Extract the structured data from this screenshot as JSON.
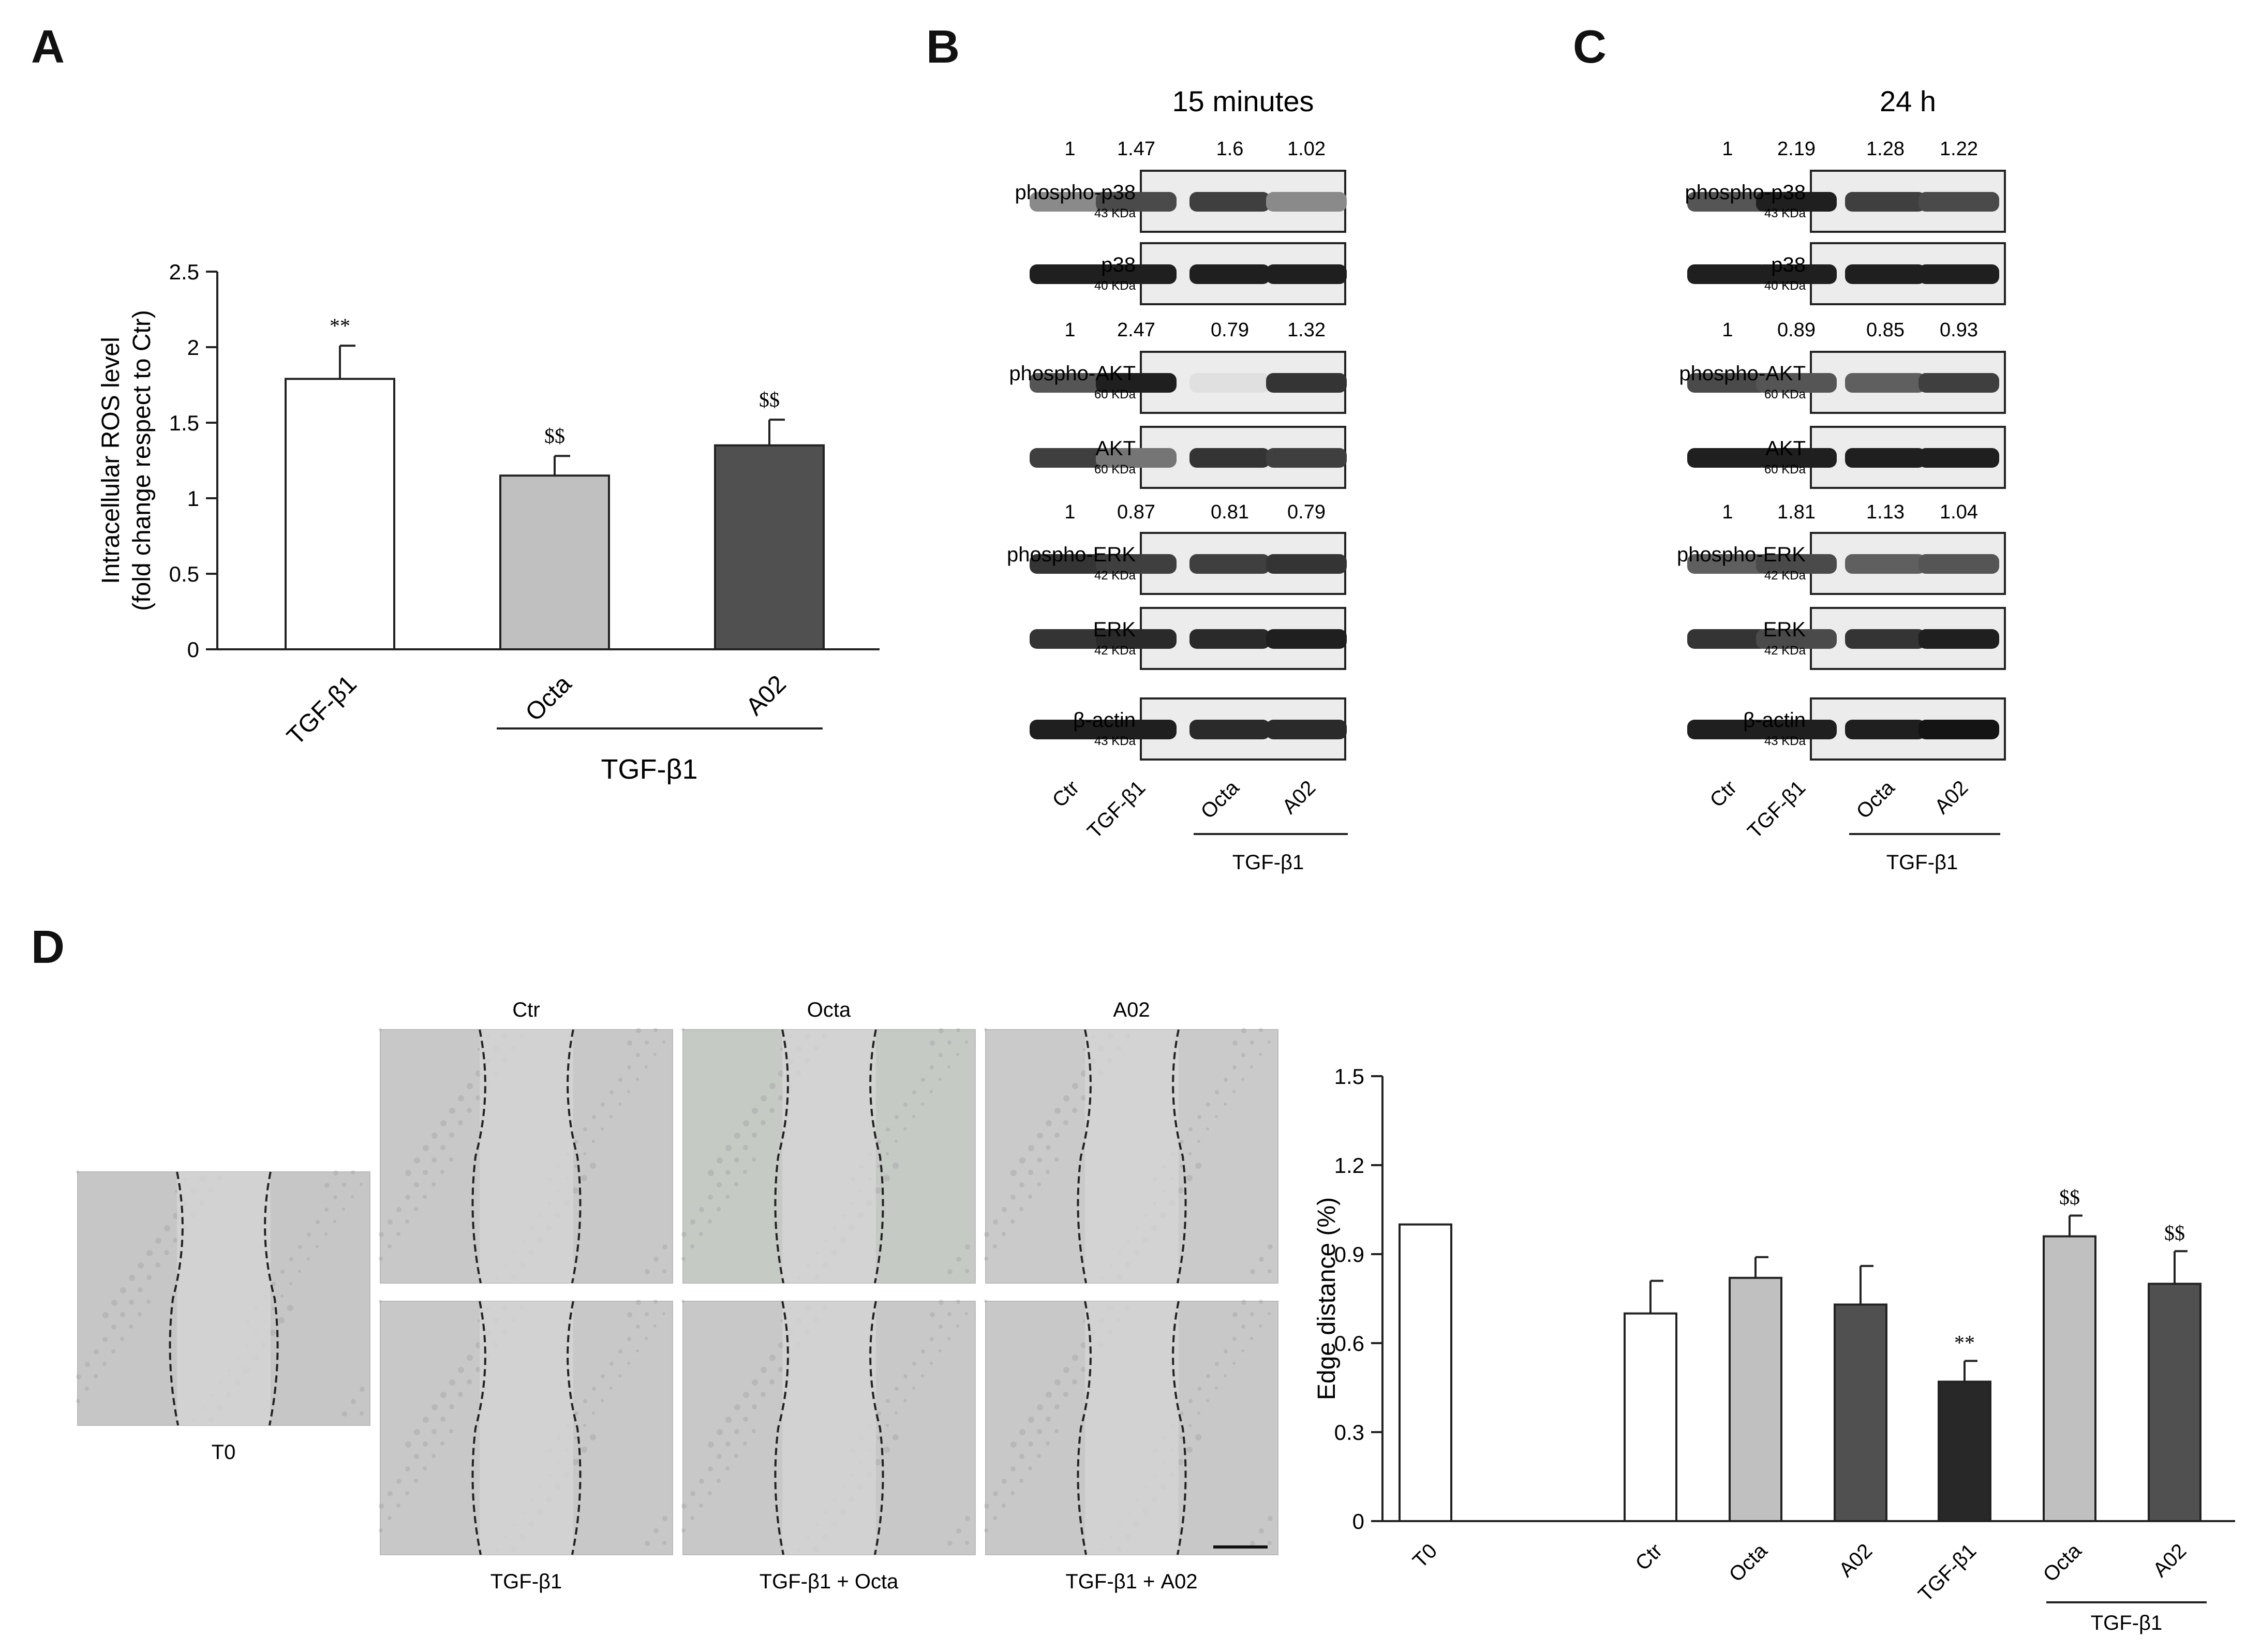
{
  "panels": {
    "a": "A",
    "b": "B",
    "c": "C",
    "d": "D"
  },
  "panel_a": {
    "chart_data": {
      "type": "bar",
      "categories": [
        "TGF-β1",
        "Octa",
        "A02"
      ],
      "values": [
        1.79,
        1.15,
        1.35
      ],
      "errors": [
        0.22,
        0.13,
        0.17
      ],
      "colors": [
        "#ffffff",
        "#c0c0c0",
        "#505050"
      ],
      "annotations": [
        "**",
        "$$",
        "$$"
      ],
      "ylabel_line1": "Intracellular ROS level",
      "ylabel_line2": "(fold change respect to Ctr)",
      "ylim": [
        0,
        2.5
      ],
      "yticks": [
        "0",
        "0.5",
        "1",
        "1.5",
        "2",
        "2.5"
      ],
      "group_label": "TGF-β1"
    }
  },
  "panel_b": {
    "title": "15 minutes",
    "blots": [
      {
        "label": "phospho-p38",
        "kda": "43 KDa",
        "values": [
          "1",
          "1.47",
          "1.6",
          "1.02"
        ],
        "intensity": [
          0.45,
          0.75,
          0.8,
          0.45
        ]
      },
      {
        "label": "p38",
        "kda": "40 KDa",
        "values": [],
        "intensity": [
          0.95,
          0.95,
          0.95,
          0.95
        ]
      },
      {
        "label": "phospho-AKT",
        "kda": "60 KDa",
        "values": [
          "1",
          "2.47",
          "0.79",
          "1.32"
        ],
        "intensity": [
          0.7,
          0.95,
          0.05,
          0.85
        ]
      },
      {
        "label": "AKT",
        "kda": "60 KDa",
        "values": [],
        "intensity": [
          0.8,
          0.55,
          0.85,
          0.8
        ]
      },
      {
        "label": "phospho-ERK",
        "kda": "42 KDa",
        "values": [
          "1",
          "0.87",
          "0.81",
          "0.79"
        ],
        "intensity": [
          0.85,
          0.8,
          0.8,
          0.85
        ]
      },
      {
        "label": "ERK",
        "kda": "42 KDa",
        "values": [],
        "intensity": [
          0.85,
          0.9,
          0.9,
          0.95
        ]
      },
      {
        "label": "β-actin",
        "kda": "43 KDa",
        "values": [],
        "intensity": [
          0.95,
          0.95,
          0.9,
          0.9
        ]
      }
    ],
    "lanes": [
      "Ctr",
      "TGF-β1",
      "Octa",
      "A02"
    ],
    "group_label": "TGF-β1"
  },
  "panel_c": {
    "title": "24 h",
    "blots": [
      {
        "label": "phospho-p38",
        "kda": "43 KDa",
        "values": [
          "1",
          "2.19",
          "1.28",
          "1.22"
        ],
        "intensity": [
          0.7,
          0.95,
          0.8,
          0.75
        ]
      },
      {
        "label": "p38",
        "kda": "40 KDa",
        "values": [],
        "intensity": [
          0.95,
          0.95,
          0.95,
          0.95
        ]
      },
      {
        "label": "phospho-AKT",
        "kda": "60 KDa",
        "values": [
          "1",
          "0.89",
          "0.85",
          "0.93"
        ],
        "intensity": [
          0.75,
          0.7,
          0.65,
          0.8
        ]
      },
      {
        "label": "AKT",
        "kda": "60 KDa",
        "values": [],
        "intensity": [
          0.95,
          0.95,
          0.95,
          0.95
        ]
      },
      {
        "label": "phospho-ERK",
        "kda": "42 KDa",
        "values": [
          "1",
          "1.81",
          "1.13",
          "1.04"
        ],
        "intensity": [
          0.65,
          0.75,
          0.65,
          0.7
        ]
      },
      {
        "label": "ERK",
        "kda": "42 KDa",
        "values": [],
        "intensity": [
          0.85,
          0.75,
          0.85,
          0.95
        ]
      },
      {
        "label": "β-actin",
        "kda": "43 KDa",
        "values": [],
        "intensity": [
          0.95,
          0.95,
          0.95,
          1.0
        ]
      }
    ],
    "lanes": [
      "Ctr",
      "TGF-β1",
      "Octa",
      "A02"
    ],
    "group_label": "TGF-β1"
  },
  "panel_d": {
    "images": {
      "t0": "T0",
      "ctr": "Ctr",
      "octa": "Octa",
      "a02": "A02",
      "tgf": "TGF-β1",
      "tgf_octa": "TGF-β1 + Octa",
      "tgf_a02": "TGF-β1 + A02"
    },
    "chart_data": {
      "type": "bar",
      "categories": [
        "T0",
        "Ctr",
        "Octa",
        "A02",
        "TGF-β1",
        "Octa",
        "A02"
      ],
      "values": [
        1.0,
        0.7,
        0.82,
        0.73,
        0.47,
        0.96,
        0.8
      ],
      "errors": [
        0,
        0.11,
        0.07,
        0.13,
        0.07,
        0.07,
        0.11
      ],
      "colors": [
        "#ffffff",
        "#ffffff",
        "#c0c0c0",
        "#505050",
        "#282828",
        "#c0c0c0",
        "#505050"
      ],
      "annotations": [
        "",
        "",
        "",
        "",
        "**",
        "$$",
        "$$"
      ],
      "ylabel": "Edge distance (%)",
      "ylim": [
        0,
        1.5
      ],
      "yticks": [
        "0",
        "0.3",
        "0.6",
        "0.9",
        "1.2",
        "1.5"
      ],
      "group_label": "TGF-β1"
    }
  }
}
